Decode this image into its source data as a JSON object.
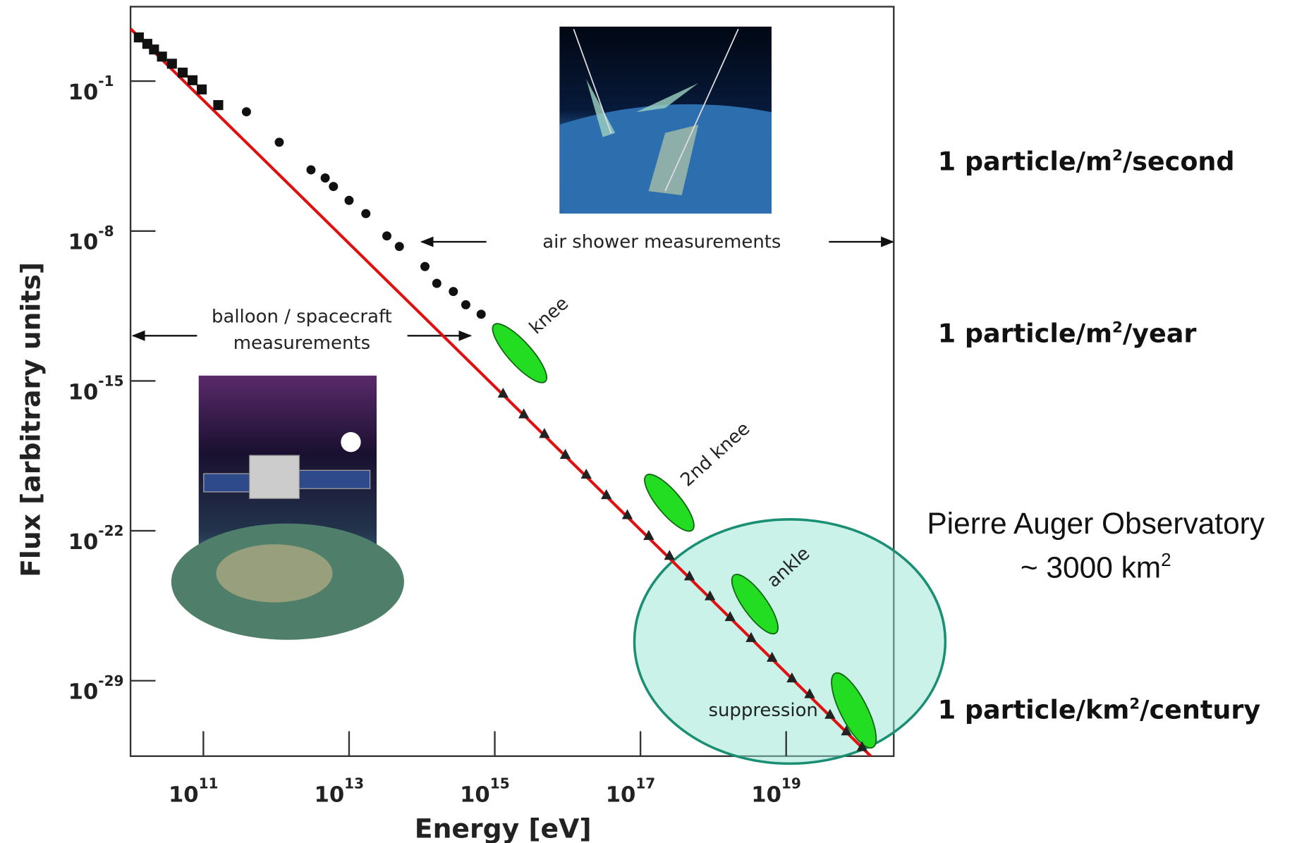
{
  "chart_data": {
    "type": "scatter",
    "x_label": "Energy  [eV]",
    "y_label": "Flux  [arbitrary units]",
    "log_x": true,
    "log_y": true,
    "xlim": [
      10000000000.0,
      3e+20
    ],
    "ylim": [
      3e-33,
      300
    ],
    "xticks": [
      {
        "value": 100000000000.0,
        "label": {
          "base": "10",
          "exp": "11"
        }
      },
      {
        "value": 10000000000000.0,
        "label": {
          "base": "10",
          "exp": "13"
        }
      },
      {
        "value": 1000000000000000.0,
        "label": {
          "base": "10",
          "exp": "15"
        }
      },
      {
        "value": 1e+17,
        "label": {
          "base": "10",
          "exp": "17"
        }
      },
      {
        "value": 1e+19,
        "label": {
          "base": "10",
          "exp": "19"
        }
      }
    ],
    "yticks": [
      {
        "value": 0.1,
        "label": {
          "base": "10",
          "exp": "-1"
        }
      },
      {
        "value": 1e-08,
        "label": {
          "base": "10",
          "exp": "-8"
        }
      },
      {
        "value": 1e-15,
        "label": {
          "base": "10",
          "exp": "-15"
        }
      },
      {
        "value": 1e-22,
        "label": {
          "base": "10",
          "exp": "-22"
        }
      },
      {
        "value": 1e-29,
        "label": {
          "base": "10",
          "exp": "-29"
        }
      }
    ],
    "series": [
      {
        "marker": "line",
        "color": "#e01010",
        "x": [
          10000000000.0,
          1.45e+20
        ],
        "values": [
          28,
          3e-33
        ]
      },
      {
        "marker": "square",
        "color": "#111111",
        "x": [
          13000000000.0,
          17000000000.0,
          21000000000.0,
          27000000000.0,
          37000000000.0,
          52000000000.0,
          71000000000.0,
          95000000000.0,
          160000000000.0
        ],
        "values": [
          11,
          5.5,
          3,
          1.4,
          0.65,
          0.25,
          0.11,
          0.041,
          0.0076
        ]
      },
      {
        "marker": "circle",
        "color": "#111111",
        "x": [
          390000000000.0,
          1100000000000.0,
          3000000000000.0,
          4700000000000.0,
          6100000000000.0,
          10000000000000.0,
          17000000000000.0,
          33000000000000.0,
          49000000000000.0,
          110000000000000.0,
          160000000000000.0,
          270000000000000.0,
          400000000000000.0,
          650000000000000.0
        ],
        "values": [
          0.0037,
          0.00014,
          7.2e-06,
          3e-06,
          1.2e-06,
          2.7e-07,
          6.5e-08,
          5.9e-09,
          1.9e-09,
          2.2e-10,
          3.6e-11,
          1.5e-11,
          3.6e-12,
          1.3e-12
        ]
      },
      {
        "marker": "triangle",
        "color": "#222222",
        "x": [
          1300000000000000.0,
          2500000000000000.0,
          4800000000000000.0,
          9300000000000000.0,
          1.8e+16,
          3.4e+16,
          6.6e+16,
          1.3e+17,
          2.5e+17,
          4.7e+17,
          9e+17,
          1.7e+18,
          3.3e+18,
          6.4e+18,
          1.2e+19,
          2.1e+19,
          4e+19,
          6.7e+19,
          1.1e+20
        ],
        "values": [
          2.6e-16,
          2.8e-17,
          3.4e-18,
          3.6e-19,
          4.3e-20,
          4.7e-21,
          5.5e-22,
          5.9e-23,
          6.9e-24,
          7.6e-25,
          8.9e-26,
          9.5e-27,
          1e-27,
          1.2e-28,
          1.3e-29,
          2.4e-30,
          2.6e-31,
          4.4e-32,
          8.1e-33
        ]
      }
    ],
    "annotations": {
      "knee": "knee",
      "second_knee": "2nd knee",
      "ankle": "ankle",
      "suppression": "suppression",
      "air_shower": "air shower measurements",
      "balloon": [
        "balloon / spacecraft",
        "measurements"
      ],
      "rate_second": {
        "pre": "1 particle/m",
        "sup": "2",
        "post": "/second"
      },
      "rate_year": {
        "pre": "1 particle/m",
        "sup": "2",
        "post": "/year"
      },
      "rate_century": {
        "pre": "1 particle/km",
        "sup": "2",
        "post": "/century"
      },
      "observatory": "Pierre Auger Observatory",
      "area": {
        "pre": "~ 3000 km",
        "sup": "2"
      }
    }
  }
}
